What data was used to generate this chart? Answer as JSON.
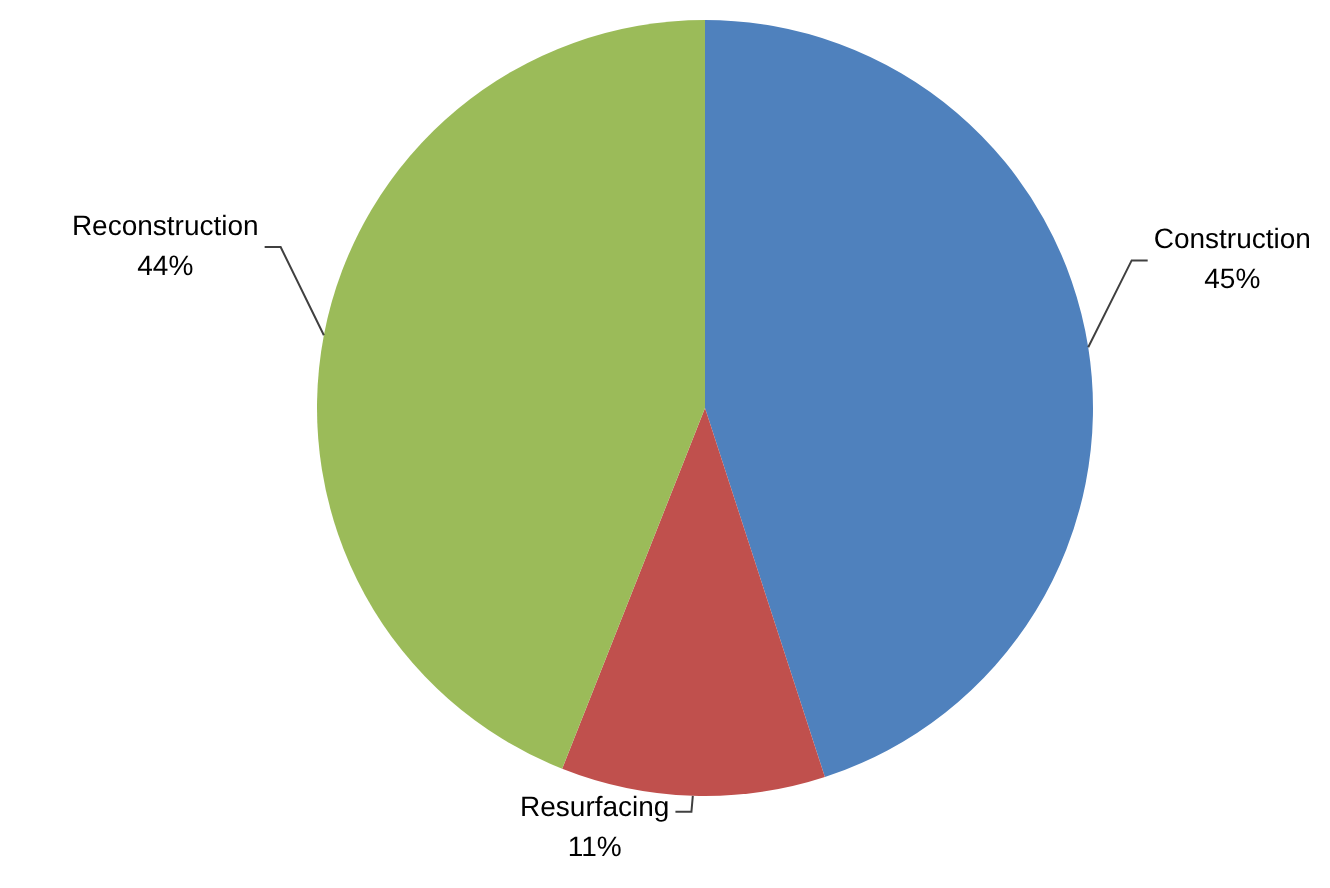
{
  "chart_data": {
    "type": "pie",
    "categories": [
      "Construction",
      "Resurfacing",
      "Reconstruction"
    ],
    "values": [
      45,
      11,
      44
    ],
    "colors": [
      "#4f81bd",
      "#c0504d",
      "#9bbb59"
    ],
    "value_labels": [
      "45%",
      "11%",
      "44%"
    ],
    "legend": false
  }
}
